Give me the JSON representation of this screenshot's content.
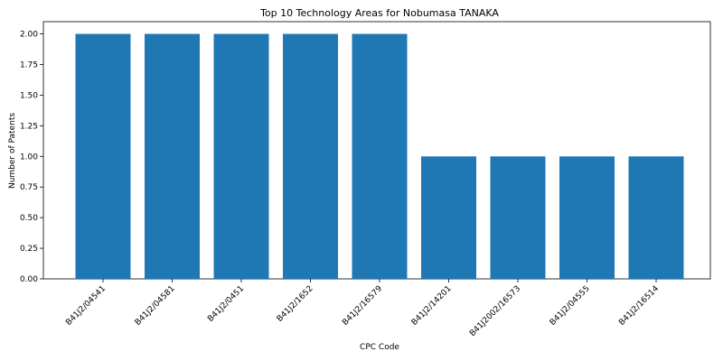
{
  "chart_data": {
    "type": "bar",
    "title": "Top 10 Technology Areas for Nobumasa TANAKA",
    "xlabel": "CPC Code",
    "ylabel": "Number of Patents",
    "categories": [
      "B41J2/04541",
      "B41J2/04581",
      "B41J2/0451",
      "B41J2/1652",
      "B41J2/16579",
      "B41J2/14201",
      "B41J2002/16573",
      "B41J2/04555",
      "B41J2/16514"
    ],
    "values": [
      2,
      2,
      2,
      2,
      2,
      1,
      1,
      1,
      1
    ],
    "ylim": [
      0,
      2.1
    ],
    "yticks": [
      "0.00",
      "0.25",
      "0.50",
      "0.75",
      "1.00",
      "1.25",
      "1.50",
      "1.75",
      "2.00"
    ],
    "grid": false,
    "legend": "none",
    "colors": {
      "bar": "#1f77b4",
      "axis": "#000000",
      "background": "#ffffff"
    }
  }
}
